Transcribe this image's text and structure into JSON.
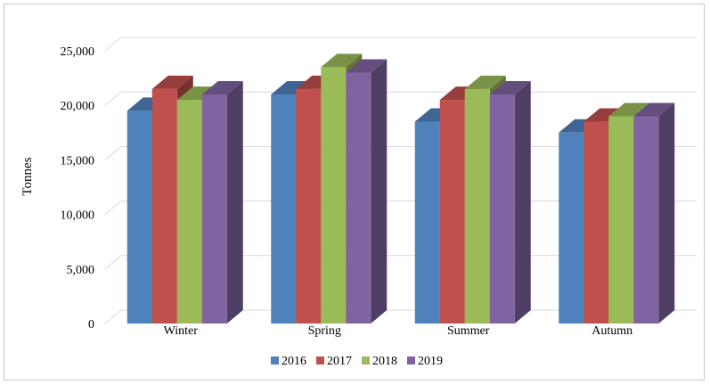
{
  "chart_data": {
    "type": "bar",
    "variant": "3d-clustered-column",
    "title": "",
    "xlabel": "",
    "ylabel": "Tonnes",
    "categories": [
      "Winter",
      "Spring",
      "Summer",
      "Autumn"
    ],
    "series": [
      {
        "name": "2016",
        "color": "#4F81BD",
        "values": [
          19500,
          21000,
          18500,
          17500
        ]
      },
      {
        "name": "2017",
        "color": "#C0504D",
        "values": [
          21500,
          21500,
          20500,
          18500
        ]
      },
      {
        "name": "2018",
        "color": "#9BBB59",
        "values": [
          20500,
          23500,
          21500,
          19000
        ]
      },
      {
        "name": "2019",
        "color": "#8064A2",
        "values": [
          21000,
          23000,
          21000,
          19000
        ]
      }
    ],
    "ylim": [
      0,
      25000
    ],
    "yticks": [
      "0",
      "5,000",
      "10,000",
      "15,000",
      "20,000",
      "25,000"
    ],
    "ytick_values": [
      0,
      5000,
      10000,
      15000,
      20000,
      25000
    ],
    "grid": true,
    "legend_position": "bottom"
  }
}
